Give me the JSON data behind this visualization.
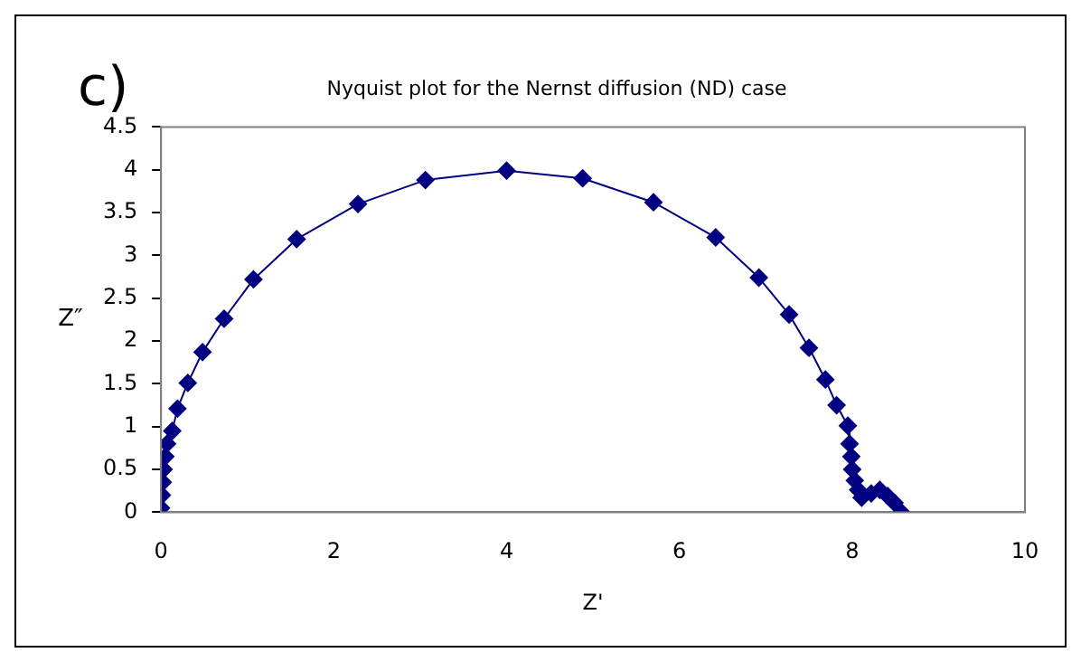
{
  "chart_data": {
    "type": "scatter",
    "title": "Nyquist plot for the Nernst diffusion (ND) case",
    "xlabel": "Z'",
    "ylabel": "Z″",
    "annotations": [
      "c)"
    ],
    "series": [
      {
        "type": "line",
        "color": "#000080",
        "x": [
          0,
          0.01,
          0.02,
          0.03,
          0.05,
          0.07,
          0.13,
          0.19,
          0.31,
          0.48,
          0.73,
          1.07,
          1.57,
          2.28,
          3.06,
          4.0,
          4.88,
          5.7,
          6.42,
          6.92,
          7.27,
          7.5,
          7.69,
          7.82,
          7.95,
          7.97,
          7.99,
          8.0,
          8.03,
          8.07,
          8.11,
          8.22,
          8.32,
          8.41,
          8.49,
          8.57
        ],
        "values": [
          0.05,
          0.2,
          0.35,
          0.5,
          0.65,
          0.8,
          0.95,
          1.21,
          1.51,
          1.87,
          2.26,
          2.72,
          3.19,
          3.6,
          3.88,
          3.99,
          3.9,
          3.62,
          3.21,
          2.74,
          2.31,
          1.92,
          1.55,
          1.25,
          1.01,
          0.8,
          0.65,
          0.5,
          0.37,
          0.26,
          0.17,
          0.22,
          0.26,
          0.19,
          0.11,
          0
        ]
      }
    ],
    "xlim": [
      0,
      10
    ],
    "xticks": [
      0,
      2,
      4,
      6,
      8,
      10
    ],
    "ylim": [
      0,
      4.5
    ],
    "yticks": [
      0,
      0.5,
      1,
      1.5,
      2,
      2.5,
      3,
      3.5,
      4,
      4.5
    ],
    "marker": "diamond",
    "line_style": "solid",
    "grid": false,
    "legend": false
  }
}
